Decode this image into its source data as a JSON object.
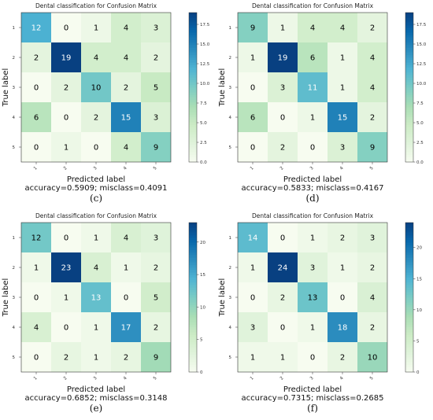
{
  "chart_data": [
    {
      "type": "heatmap",
      "panel": "(c)",
      "title": "Dental classification for Confusion Matrix",
      "xlabel": "Predicted label",
      "ylabel": "True label",
      "x_categories": [
        "1",
        "2",
        "3",
        "4",
        "5"
      ],
      "y_categories": [
        "1",
        "2",
        "3",
        "4",
        "5"
      ],
      "matrix": [
        [
          12,
          0,
          1,
          4,
          3
        ],
        [
          2,
          19,
          4,
          4,
          2
        ],
        [
          0,
          2,
          10,
          2,
          5
        ],
        [
          6,
          0,
          2,
          15,
          3
        ],
        [
          0,
          1,
          0,
          4,
          9
        ]
      ],
      "colorbar": {
        "range": [
          0,
          19
        ],
        "ticks": [
          "0.0",
          "2.5",
          "5.0",
          "7.5",
          "10.0",
          "12.5",
          "15.0",
          "17.5"
        ],
        "tick_values": [
          0,
          2.5,
          5,
          7.5,
          10,
          12.5,
          15,
          17.5
        ]
      },
      "accuracy_text": "accuracy=0.5909; misclass=0.4091"
    },
    {
      "type": "heatmap",
      "panel": "(d)",
      "title": "Dental classification for Confusion Matrix",
      "xlabel": "Predicted label",
      "ylabel": "True label",
      "x_categories": [
        "1",
        "2",
        "3",
        "4",
        "5"
      ],
      "y_categories": [
        "1",
        "2",
        "3",
        "4",
        "5"
      ],
      "matrix": [
        [
          9,
          1,
          4,
          4,
          2
        ],
        [
          1,
          19,
          6,
          1,
          4
        ],
        [
          0,
          3,
          11,
          1,
          4
        ],
        [
          6,
          0,
          1,
          15,
          2
        ],
        [
          0,
          2,
          0,
          3,
          9
        ]
      ],
      "colorbar": {
        "range": [
          0,
          19
        ],
        "ticks": [
          "0.0",
          "2.5",
          "5.0",
          "7.5",
          "10.0",
          "12.5",
          "15.0",
          "17.5"
        ],
        "tick_values": [
          0,
          2.5,
          5,
          7.5,
          10,
          12.5,
          15,
          17.5
        ]
      },
      "accuracy_text": "accuracy=0.5833; misclass=0.4167"
    },
    {
      "type": "heatmap",
      "panel": "(e)",
      "title": "Dental classification for Confusion Matrix",
      "xlabel": "Predicted label",
      "ylabel": "True label",
      "x_categories": [
        "1",
        "2",
        "3",
        "4",
        "5"
      ],
      "y_categories": [
        "1",
        "2",
        "3",
        "4",
        "5"
      ],
      "matrix": [
        [
          12,
          0,
          1,
          4,
          3
        ],
        [
          1,
          23,
          4,
          1,
          2
        ],
        [
          0,
          1,
          13,
          0,
          5
        ],
        [
          4,
          0,
          1,
          17,
          2
        ],
        [
          0,
          2,
          1,
          2,
          9
        ]
      ],
      "colorbar": {
        "range": [
          0,
          23
        ],
        "ticks": [
          "0",
          "5",
          "10",
          "15",
          "20"
        ],
        "tick_values": [
          0,
          5,
          10,
          15,
          20
        ]
      },
      "accuracy_text": "accuracy=0.6852; misclass=0.3148"
    },
    {
      "type": "heatmap",
      "panel": "(f)",
      "title": "Dental classification for Confusion Matrix",
      "xlabel": "Predicted label",
      "ylabel": "True label",
      "x_categories": [
        "1",
        "2",
        "3",
        "4",
        "5"
      ],
      "y_categories": [
        "1",
        "2",
        "3",
        "4",
        "5"
      ],
      "matrix": [
        [
          14,
          0,
          1,
          2,
          3
        ],
        [
          1,
          24,
          3,
          1,
          2
        ],
        [
          0,
          2,
          13,
          0,
          4
        ],
        [
          3,
          0,
          1,
          18,
          2
        ],
        [
          1,
          1,
          0,
          2,
          10
        ]
      ],
      "colorbar": {
        "range": [
          0,
          24
        ],
        "ticks": [
          "0",
          "5",
          "10",
          "15",
          "20"
        ],
        "tick_values": [
          0,
          5,
          10,
          15,
          20
        ]
      },
      "accuracy_text": "accuracy=0.7315; misclass=0.2685"
    }
  ],
  "colors": {
    "colormap": [
      "#f7fcf0",
      "#e0f3db",
      "#ccebc5",
      "#a8ddb5",
      "#7bccc4",
      "#4eb3d3",
      "#2b8cbe",
      "#0868ac",
      "#084081"
    ]
  }
}
